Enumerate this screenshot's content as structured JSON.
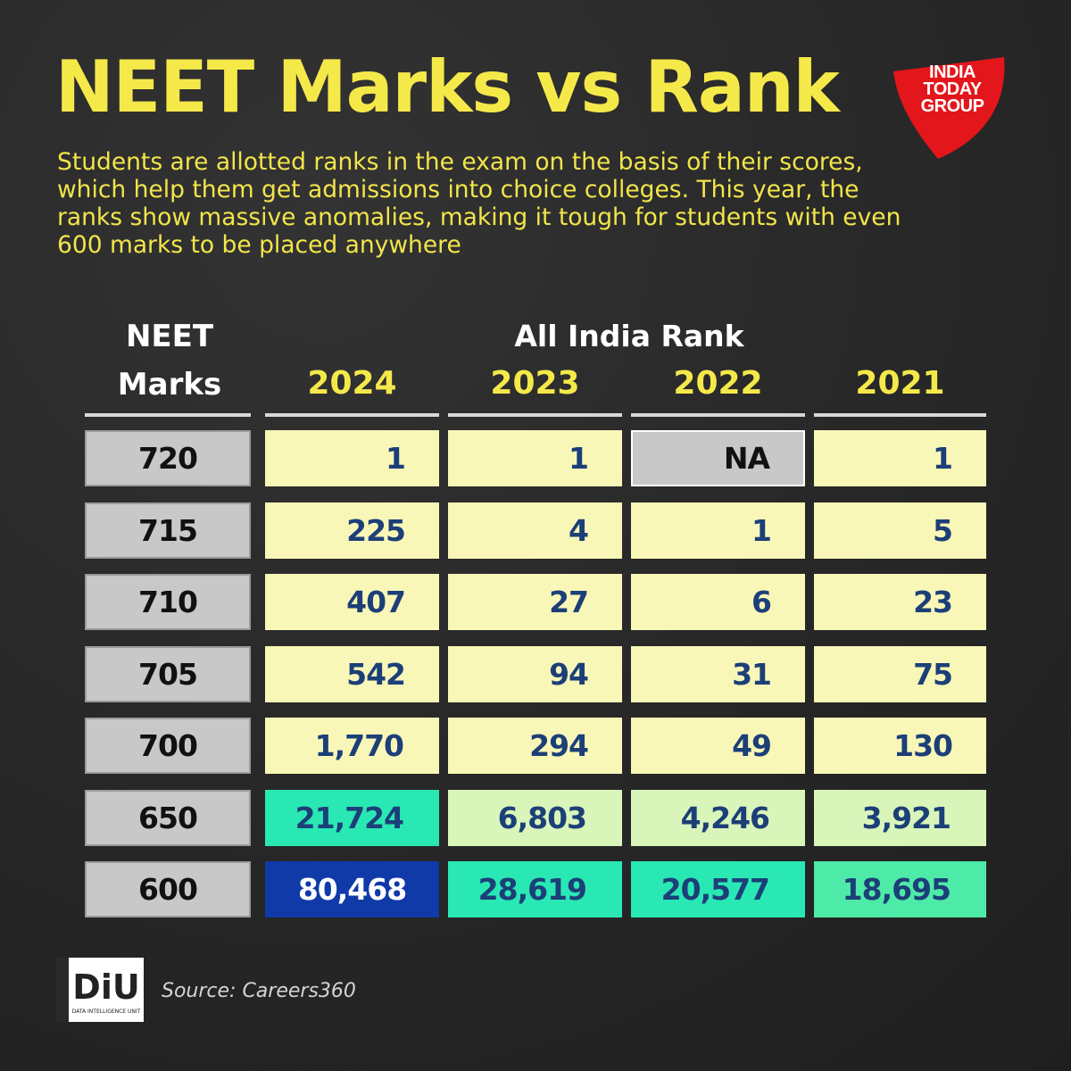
{
  "title": "NEET Marks vs Rank",
  "subtitle": "Students are allotted ranks in the exam on the basis of their scores, which help them get admissions into choice colleges. This year, the ranks show massive anomalies, making it tough for students with even 600 marks to be placed anywhere",
  "logo": {
    "line1": "INDIA",
    "line2": "TODAY",
    "line3": "GROUP"
  },
  "header": {
    "marks_line1": "NEET",
    "marks_line2": "Marks",
    "rank_group": "All India Rank"
  },
  "footer": {
    "logo_text": "DiU",
    "logo_sub": "DATA INTELLIGENCE UNIT",
    "source": "Source: Careers360"
  },
  "colors": {
    "yellow_cell": "#f9f7b8",
    "light_green": "#d9f5ba",
    "teal": "#29e8b4",
    "mint": "#4eeaa7",
    "navy": "#0f3aa8",
    "na_cell": "#c8c8c8",
    "value_text": "#1c3f78"
  },
  "chart_data": {
    "type": "table",
    "title": "NEET Marks vs Rank",
    "row_header": "NEET Marks",
    "column_group": "All India Rank",
    "columns": [
      "2024",
      "2023",
      "2022",
      "2021"
    ],
    "rows": [
      {
        "marks": "720",
        "ranks": [
          "1",
          "1",
          "NA",
          "1"
        ],
        "shade": [
          "yellow",
          "yellow",
          "na",
          "yellow"
        ]
      },
      {
        "marks": "715",
        "ranks": [
          "225",
          "4",
          "1",
          "5"
        ],
        "shade": [
          "yellow",
          "yellow",
          "yellow",
          "yellow"
        ]
      },
      {
        "marks": "710",
        "ranks": [
          "407",
          "27",
          "6",
          "23"
        ],
        "shade": [
          "yellow",
          "yellow",
          "yellow",
          "yellow"
        ]
      },
      {
        "marks": "705",
        "ranks": [
          "542",
          "94",
          "31",
          "75"
        ],
        "shade": [
          "yellow",
          "yellow",
          "yellow",
          "yellow"
        ]
      },
      {
        "marks": "700",
        "ranks": [
          "1,770",
          "294",
          "49",
          "130"
        ],
        "shade": [
          "yellow",
          "yellow",
          "yellow",
          "yellow"
        ]
      },
      {
        "marks": "650",
        "ranks": [
          "21,724",
          "6,803",
          "4,246",
          "3,921"
        ],
        "shade": [
          "teal",
          "light_green",
          "light_green",
          "light_green"
        ]
      },
      {
        "marks": "600",
        "ranks": [
          "80,468",
          "28,619",
          "20,577",
          "18,695"
        ],
        "shade": [
          "navy",
          "teal",
          "teal",
          "mint"
        ]
      }
    ]
  }
}
